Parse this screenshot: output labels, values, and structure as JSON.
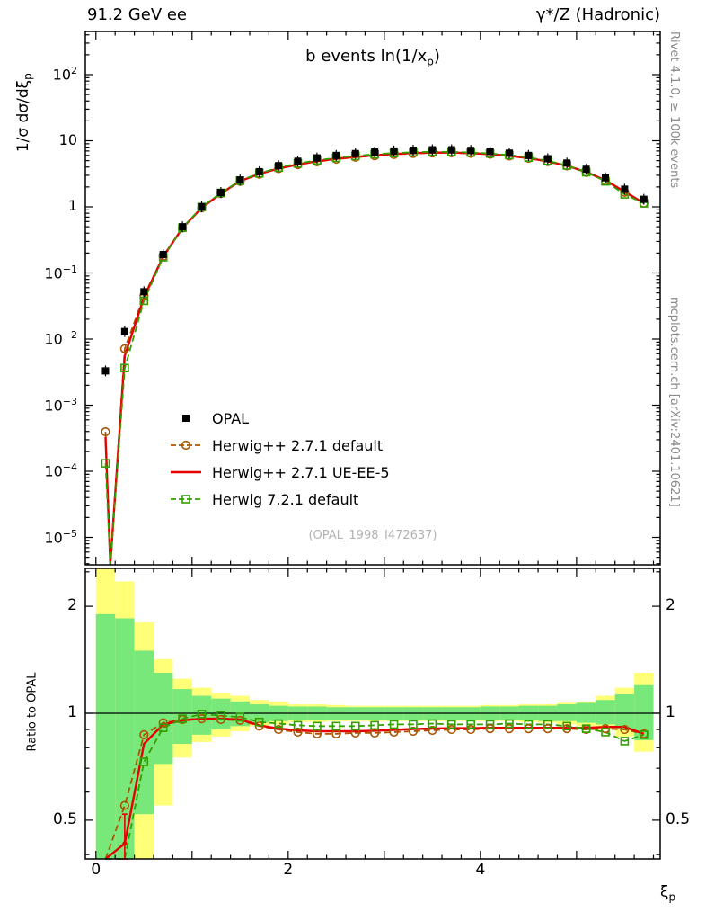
{
  "meta": {
    "header_left": "91.2 GeV ee",
    "header_right": "γ*/Z (Hadronic)",
    "right_label_top": "Rivet 4.1.0, ≥ 100k events",
    "right_label_bottom": "mcplots.cern.ch [arXiv:2401.10621]",
    "watermark": "(OPAL_1998_I472637)"
  },
  "main_panel": {
    "title": {
      "pre": "b events ln(1/x",
      "sub": "p",
      "post": ")"
    },
    "ylabel": {
      "pre": "1/σ  dσ/dξ",
      "sub": "p"
    },
    "xlabel": {
      "pre": "ξ",
      "sub": "p"
    },
    "yticks_exponents": [
      2,
      1,
      0,
      -1,
      -2,
      -3,
      -4,
      -5
    ]
  },
  "ratio_panel": {
    "ylabel": "Ratio to OPAL",
    "yticks": [
      2,
      1,
      0.5
    ]
  },
  "xticks_labels": [
    0,
    2,
    4
  ],
  "legend": {
    "items": [
      {
        "label": "OPAL",
        "color": "#000000",
        "line": "none",
        "marker": "filled-square"
      },
      {
        "label": "Herwig++ 2.7.1 default",
        "color": "#aa5500",
        "line": "dashed",
        "marker": "open-circle"
      },
      {
        "label": "Herwig++ 2.7.1 UE-EE-5",
        "color": "#e60000",
        "line": "solid",
        "marker": "none"
      },
      {
        "label": "Herwig 7.2.1 default",
        "color": "#33a000",
        "line": "dashed",
        "marker": "open-square"
      }
    ]
  },
  "colors": {
    "band_yellow": "#ffff78",
    "band_green": "#79e87a",
    "frame": "#000000",
    "reference_line": "#000000"
  },
  "chart_data": {
    "type": "line",
    "title": "b events ln(1/x_p)",
    "xlabel": "xi_p",
    "ylabel": "1/sigma dsigma/dxi_p",
    "xlim": [
      -0.11,
      5.87
    ],
    "main_yscale": "log",
    "main_ylim": [
      3.6e-06,
      450
    ],
    "ratio_yscale": "log",
    "ratio_ylim": [
      0.39,
      2.54
    ],
    "x": [
      0.1,
      0.3,
      0.5,
      0.7,
      0.9,
      1.1,
      1.3,
      1.5,
      1.7,
      1.9,
      2.1,
      2.3,
      2.5,
      2.7,
      2.9,
      3.1,
      3.3,
      3.5,
      3.7,
      3.9,
      4.1,
      4.3,
      4.5,
      4.7,
      4.9,
      5.1,
      5.3,
      5.5,
      5.7
    ],
    "series": [
      {
        "name": "OPAL",
        "color": "#000000",
        "marker": "filled-square",
        "linestyle": "none",
        "linewidth": 0,
        "values": [
          0.0033,
          0.013,
          0.052,
          0.19,
          0.5,
          1.0,
          1.65,
          2.55,
          3.4,
          4.2,
          4.9,
          5.5,
          6.0,
          6.4,
          6.75,
          7.0,
          7.2,
          7.3,
          7.3,
          7.15,
          6.9,
          6.5,
          6.0,
          5.35,
          4.6,
          3.7,
          2.75,
          1.85,
          1.3
        ]
      },
      {
        "name": "Herwig++ 2.7.1 default",
        "color": "#aa5500",
        "marker": "open-circle",
        "linestyle": "dashed",
        "linewidth": 1.8,
        "ratio_to_opal": [
          0.12,
          0.55,
          0.87,
          0.94,
          0.96,
          0.965,
          0.96,
          0.955,
          0.92,
          0.9,
          0.885,
          0.875,
          0.875,
          0.88,
          0.88,
          0.885,
          0.89,
          0.895,
          0.9,
          0.9,
          0.905,
          0.905,
          0.905,
          0.905,
          0.905,
          0.9,
          0.905,
          0.9,
          0.875
        ]
      },
      {
        "name": "Herwig++ 2.7.1 UE-EE-5",
        "color": "#e60000",
        "marker": "none",
        "linestyle": "solid",
        "linewidth": 2.4,
        "ratio_to_opal": [
          0.1,
          0.43,
          0.82,
          0.93,
          0.955,
          0.965,
          0.965,
          0.96,
          0.925,
          0.905,
          0.895,
          0.89,
          0.89,
          0.89,
          0.893,
          0.898,
          0.903,
          0.905,
          0.908,
          0.908,
          0.91,
          0.91,
          0.91,
          0.91,
          0.91,
          0.91,
          0.915,
          0.915,
          0.875
        ]
      },
      {
        "name": "Herwig 7.2.1 default",
        "color": "#33a000",
        "marker": "open-square",
        "linestyle": "dashed",
        "linewidth": 1.8,
        "ratio_to_opal": [
          0.04,
          0.28,
          0.73,
          0.91,
          0.965,
          0.995,
          0.985,
          0.975,
          0.945,
          0.935,
          0.925,
          0.92,
          0.92,
          0.92,
          0.925,
          0.93,
          0.93,
          0.935,
          0.93,
          0.93,
          0.93,
          0.935,
          0.93,
          0.93,
          0.92,
          0.905,
          0.885,
          0.835,
          0.87
        ]
      }
    ],
    "ratio_errorbars": [
      {
        "series": 2,
        "x": 0.3,
        "value": 0.43,
        "lo": 0.355,
        "hi": 0.52
      }
    ],
    "bands": {
      "x_start": 0.0,
      "bin_width": 0.2,
      "yellow_lo": [
        0.01,
        0.01,
        0.25,
        0.55,
        0.75,
        0.83,
        0.86,
        0.89,
        0.92,
        0.93,
        0.945,
        0.945,
        0.95,
        0.95,
        0.95,
        0.95,
        0.95,
        0.95,
        0.95,
        0.95,
        0.95,
        0.95,
        0.945,
        0.94,
        0.93,
        0.92,
        0.9,
        0.86,
        0.78
      ],
      "yellow_hi": [
        2.6,
        2.35,
        1.8,
        1.42,
        1.25,
        1.18,
        1.14,
        1.12,
        1.09,
        1.08,
        1.06,
        1.06,
        1.055,
        1.05,
        1.05,
        1.05,
        1.05,
        1.05,
        1.05,
        1.05,
        1.055,
        1.055,
        1.06,
        1.06,
        1.07,
        1.08,
        1.12,
        1.18,
        1.3
      ],
      "green_lo": [
        0.01,
        0.33,
        0.52,
        0.72,
        0.82,
        0.87,
        0.9,
        0.92,
        0.94,
        0.95,
        0.955,
        0.955,
        0.96,
        0.96,
        0.96,
        0.96,
        0.96,
        0.96,
        0.96,
        0.96,
        0.96,
        0.955,
        0.955,
        0.95,
        0.95,
        0.94,
        0.93,
        0.9,
        0.84
      ],
      "green_hi": [
        1.9,
        1.85,
        1.5,
        1.3,
        1.17,
        1.12,
        1.1,
        1.08,
        1.06,
        1.05,
        1.045,
        1.045,
        1.04,
        1.04,
        1.04,
        1.04,
        1.04,
        1.04,
        1.04,
        1.04,
        1.045,
        1.045,
        1.05,
        1.05,
        1.06,
        1.07,
        1.09,
        1.13,
        1.2
      ]
    }
  }
}
